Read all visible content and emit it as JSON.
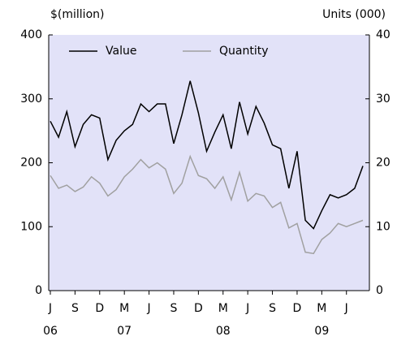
{
  "chart_data": {
    "type": "line",
    "y_label": "$(million)",
    "y2_label": "Units (000)",
    "categories": [
      "J",
      null,
      null,
      "S",
      null,
      null,
      "D",
      null,
      null,
      "M",
      null,
      null,
      "J",
      null,
      null,
      "S",
      null,
      null,
      "D",
      null,
      null,
      "M",
      null,
      null,
      "J",
      null,
      null,
      "S",
      null,
      null,
      "D",
      null,
      null,
      "M",
      null,
      null,
      "J",
      null,
      null
    ],
    "category_years": [
      "06",
      null,
      null,
      null,
      null,
      null,
      null,
      null,
      null,
      "07",
      null,
      null,
      null,
      null,
      null,
      null,
      null,
      null,
      null,
      null,
      null,
      "08",
      null,
      null,
      null,
      null,
      null,
      null,
      null,
      null,
      null,
      null,
      null,
      "09",
      null,
      null,
      null,
      null,
      null
    ],
    "series": [
      {
        "name": "Value",
        "color": "#000000",
        "values": [
          265,
          240,
          280,
          225,
          260,
          275,
          270,
          205,
          235,
          250,
          260,
          292,
          280,
          292,
          292,
          230,
          275,
          328,
          278,
          218,
          248,
          275,
          222,
          295,
          245,
          288,
          262,
          228,
          222,
          160,
          218,
          110,
          97,
          125,
          150,
          145,
          150,
          160,
          195
        ]
      },
      {
        "name": "Quantity",
        "color": "#a0a0a0",
        "axis": "y2",
        "values": [
          18,
          16,
          16.5,
          15.5,
          16.2,
          17.8,
          16.8,
          14.8,
          15.8,
          17.8,
          19,
          20.5,
          19.2,
          20,
          19,
          15.2,
          16.8,
          21,
          18,
          17.5,
          16,
          17.8,
          14.2,
          18.5,
          14,
          15.2,
          14.8,
          13,
          13.8,
          9.8,
          10.5,
          6,
          5.8,
          8,
          9,
          10.5,
          10,
          10.5,
          11
        ]
      }
    ],
    "ylim": [
      0,
      400
    ],
    "yticks": [
      0,
      100,
      200,
      300,
      400
    ],
    "y2lim": [
      0,
      40
    ],
    "y2ticks": [
      0,
      10,
      20,
      30,
      40
    ],
    "grid": false,
    "legend": "top-left",
    "background": "#e2e2f8"
  }
}
